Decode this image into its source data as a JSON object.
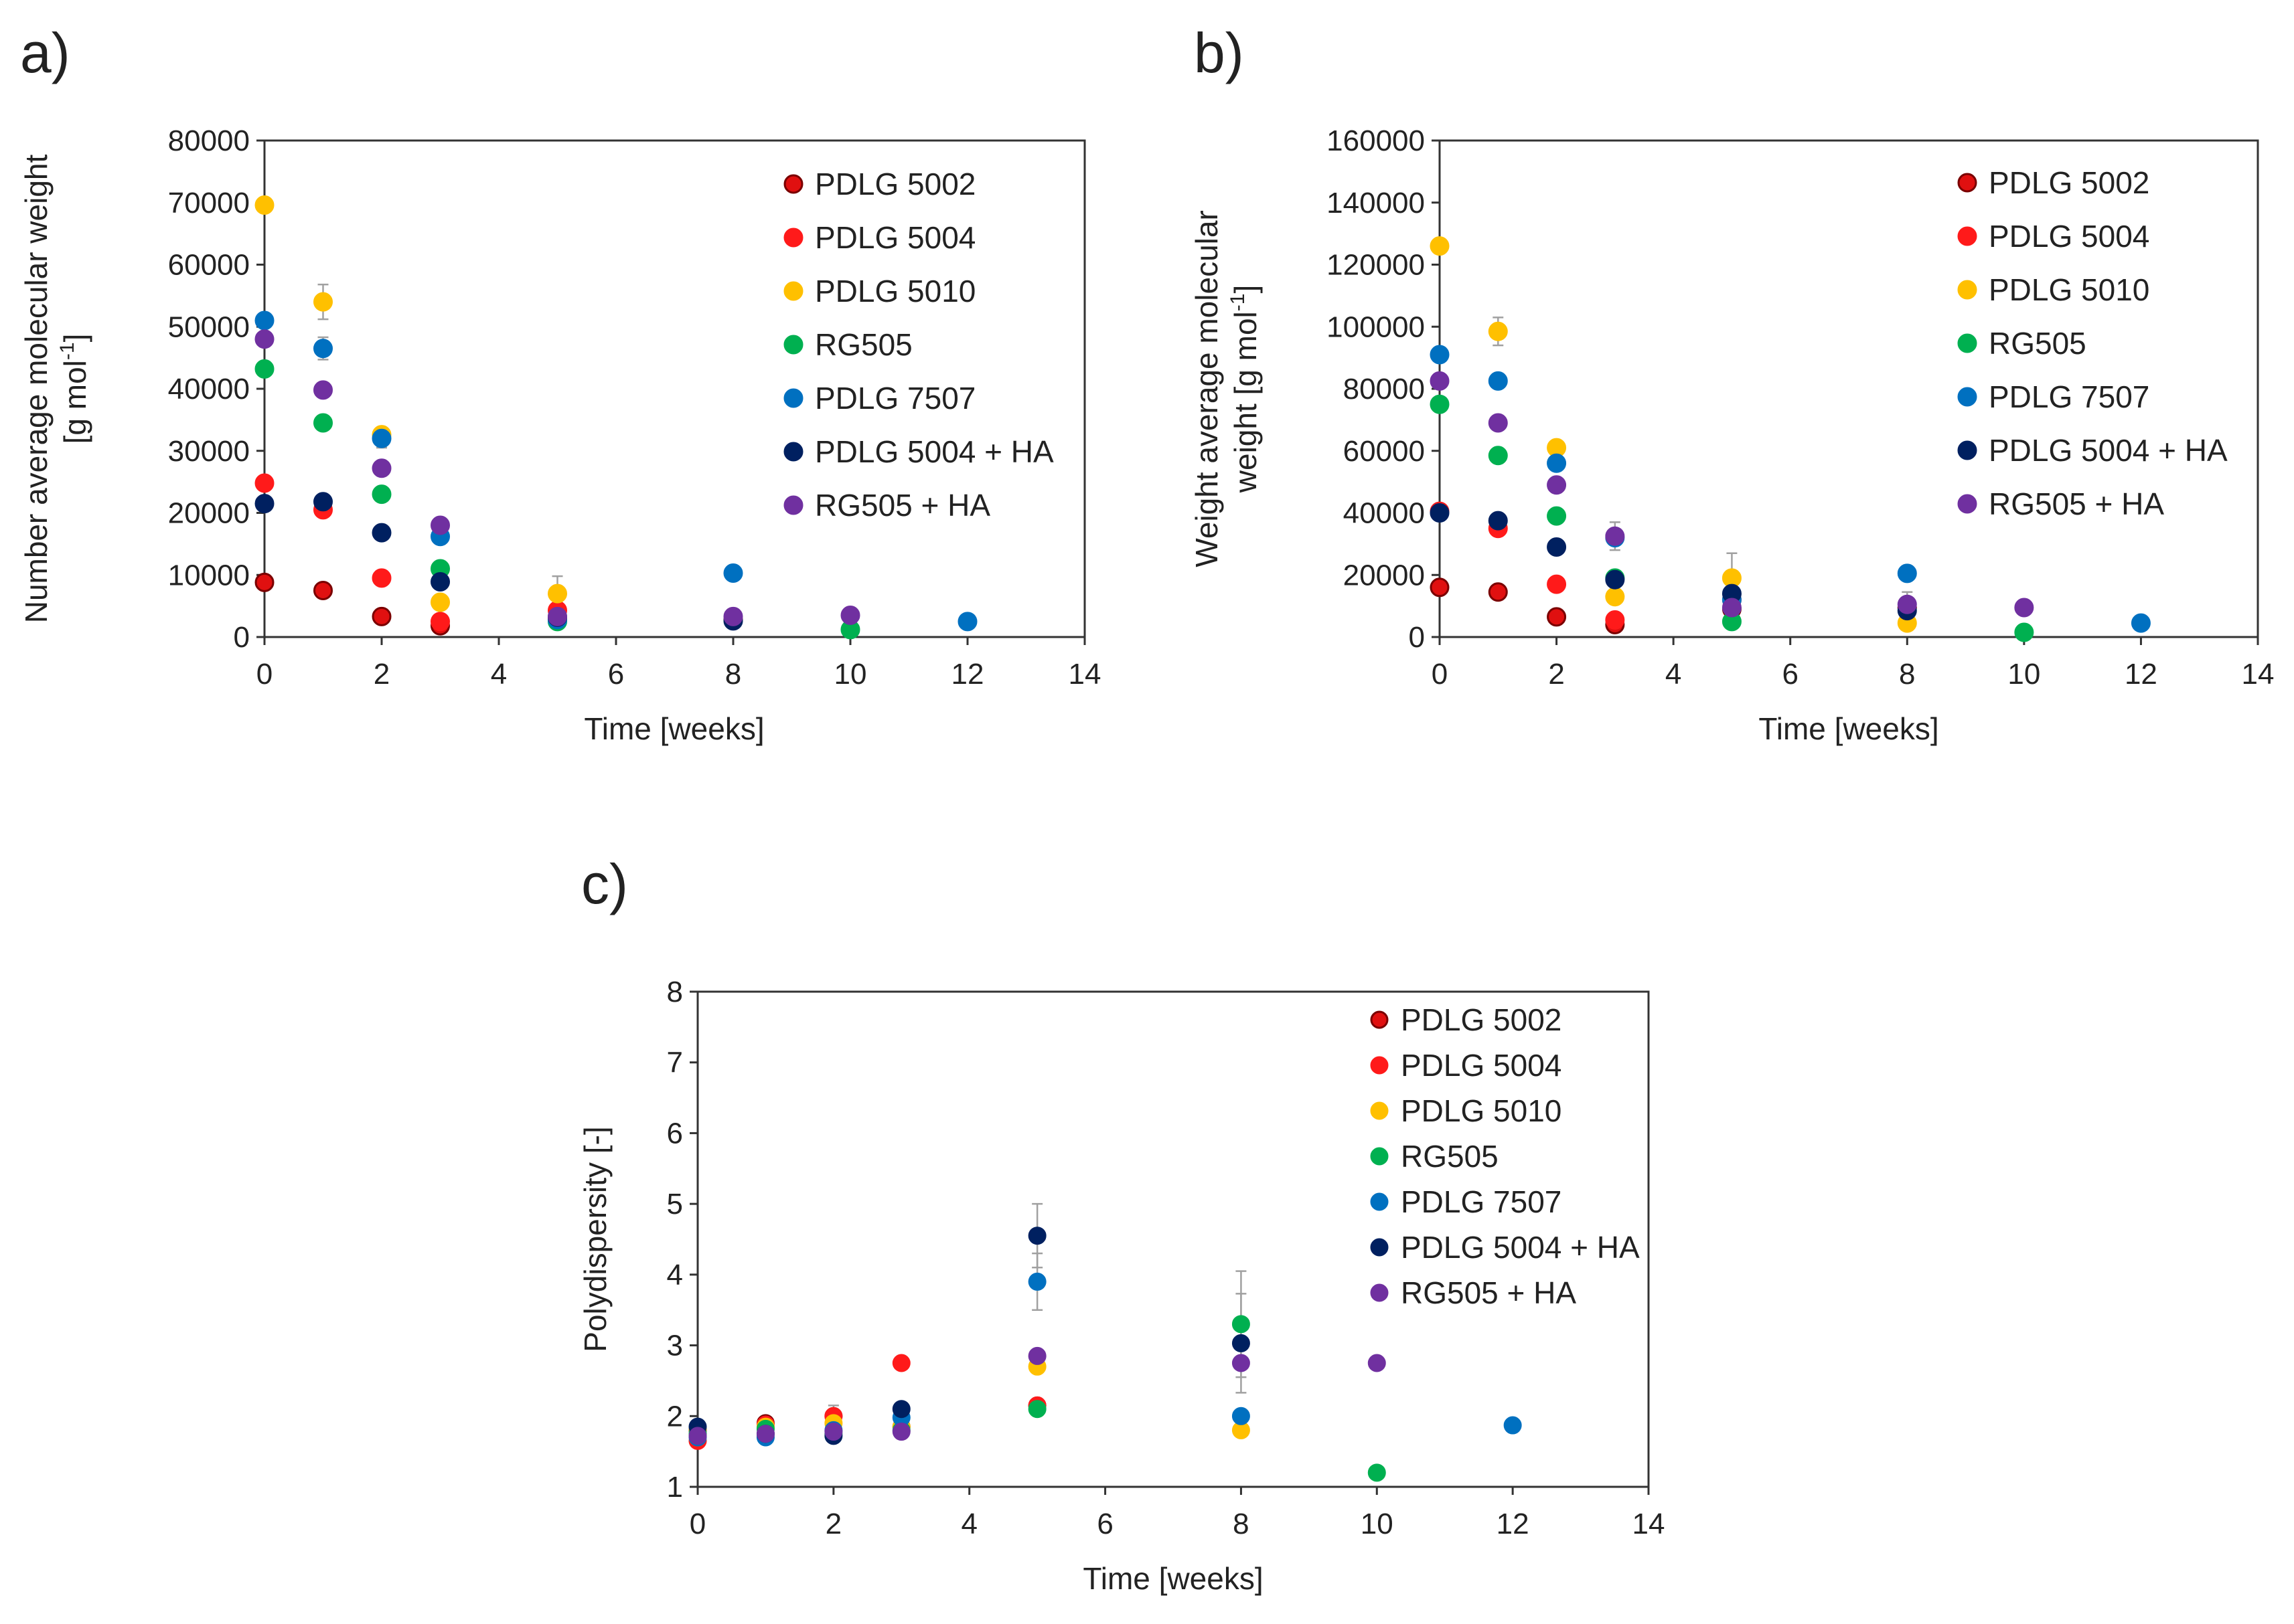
{
  "series_meta": [
    {
      "name": "PDLG 5002",
      "color": "#e01010",
      "edge": "#7a0000"
    },
    {
      "name": "PDLG 5004",
      "color": "#ff1a1a",
      "edge": "#ff1a1a"
    },
    {
      "name": "PDLG 5010",
      "color": "#ffc000",
      "edge": "#ffc000"
    },
    {
      "name": "RG505",
      "color": "#00b050",
      "edge": "#00b050"
    },
    {
      "name": "PDLG 7507",
      "color": "#0070c0",
      "edge": "#0070c0"
    },
    {
      "name": "PDLG 5004 + HA",
      "color": "#002060",
      "edge": "#002060"
    },
    {
      "name": "RG505 + HA",
      "color": "#7030a0",
      "edge": "#7030a0"
    }
  ],
  "chart_data": [
    {
      "panel": "a)",
      "type": "scatter",
      "xlabel": "Time [weeks]",
      "ylabel_lines": [
        "Number average molecular weight",
        "[g mol"
      ],
      "ylabel_sup": "-1",
      "ylabel_after": "]",
      "xlim": [
        0,
        14
      ],
      "ylim": [
        0,
        80000
      ],
      "xticks": [
        0,
        2,
        4,
        6,
        8,
        10,
        12,
        14
      ],
      "yticks": [
        0,
        10000,
        20000,
        30000,
        40000,
        50000,
        60000,
        70000,
        80000
      ],
      "series": [
        {
          "name": "PDLG 5002",
          "x": [
            0,
            1,
            2,
            3,
            5,
            8
          ],
          "y": [
            8800,
            7500,
            3300,
            1800,
            3000,
            2800
          ]
        },
        {
          "name": "PDLG 5004",
          "x": [
            0,
            1,
            2,
            3,
            5
          ],
          "y": [
            24800,
            20500,
            9500,
            2500,
            4300
          ]
        },
        {
          "name": "PDLG 5010",
          "x": [
            0,
            1,
            2,
            3,
            5
          ],
          "y": [
            69600,
            54000,
            32600,
            5600,
            7000
          ],
          "err": [
            0,
            2800,
            0,
            0,
            2800
          ]
        },
        {
          "name": "RG505",
          "x": [
            0,
            1,
            2,
            3,
            5,
            10
          ],
          "y": [
            43200,
            34500,
            23000,
            11000,
            2500,
            1200
          ]
        },
        {
          "name": "PDLG 7507",
          "x": [
            0,
            1,
            2,
            3,
            5,
            8,
            12
          ],
          "y": [
            51000,
            46500,
            32000,
            16200,
            2800,
            10300,
            2500
          ],
          "err": [
            0,
            1800,
            1500,
            0,
            0,
            0,
            0
          ]
        },
        {
          "name": "PDLG 5004 + HA",
          "x": [
            0,
            1,
            2,
            3,
            5,
            8
          ],
          "y": [
            21500,
            21800,
            16800,
            8900,
            3200,
            2600
          ]
        },
        {
          "name": "RG505 + HA",
          "x": [
            0,
            1,
            2,
            3,
            5,
            8,
            10
          ],
          "y": [
            48000,
            39800,
            27200,
            18000,
            3300,
            3300,
            3500
          ]
        }
      ]
    },
    {
      "panel": "b)",
      "type": "scatter",
      "xlabel": "Time [weeks]",
      "ylabel_lines": [
        "Weight average molecular",
        "weight [g mol"
      ],
      "ylabel_sup": "-1",
      "ylabel_after": "]",
      "xlim": [
        0,
        14
      ],
      "ylim": [
        0,
        160000
      ],
      "xticks": [
        0,
        2,
        4,
        6,
        8,
        10,
        12,
        14
      ],
      "yticks": [
        0,
        20000,
        40000,
        60000,
        80000,
        100000,
        120000,
        140000,
        160000
      ],
      "series": [
        {
          "name": "PDLG 5002",
          "x": [
            0,
            1,
            2,
            3,
            5,
            8
          ],
          "y": [
            16000,
            14500,
            6500,
            4000,
            9000,
            9500
          ]
        },
        {
          "name": "PDLG 5004",
          "x": [
            0,
            1,
            2,
            3,
            5
          ],
          "y": [
            40500,
            35000,
            17000,
            5500,
            12000
          ]
        },
        {
          "name": "PDLG 5010",
          "x": [
            0,
            1,
            2,
            3,
            5,
            8
          ],
          "y": [
            126000,
            98500,
            61000,
            13000,
            19000,
            4500
          ],
          "err": [
            0,
            4500,
            0,
            0,
            8000,
            0
          ]
        },
        {
          "name": "RG505",
          "x": [
            0,
            1,
            2,
            3,
            5,
            10
          ],
          "y": [
            75000,
            58500,
            39000,
            19000,
            5000,
            1500
          ]
        },
        {
          "name": "PDLG 7507",
          "x": [
            0,
            1,
            2,
            3,
            5,
            8,
            12
          ],
          "y": [
            91000,
            82500,
            56000,
            32000,
            12000,
            20500,
            4500
          ]
        },
        {
          "name": "PDLG 5004 + HA",
          "x": [
            0,
            1,
            2,
            3,
            5,
            8
          ],
          "y": [
            40000,
            37500,
            29000,
            18500,
            14000,
            8500
          ]
        },
        {
          "name": "RG505 + HA",
          "x": [
            0,
            1,
            2,
            3,
            5,
            8,
            10
          ],
          "y": [
            82500,
            69000,
            49000,
            32500,
            9500,
            10500,
            9500
          ],
          "err": [
            0,
            0,
            0,
            4500,
            0,
            4000,
            0
          ]
        }
      ]
    },
    {
      "panel": "c)",
      "type": "scatter",
      "xlabel": "Time [weeks]",
      "ylabel_lines": [
        "Polydispersity [-]"
      ],
      "xlim": [
        0,
        14
      ],
      "ylim": [
        1,
        8
      ],
      "xticks": [
        0,
        2,
        4,
        6,
        8,
        10,
        12,
        14
      ],
      "yticks": [
        1,
        2,
        3,
        4,
        5,
        6,
        7,
        8
      ],
      "series": [
        {
          "name": "PDLG 5002",
          "x": [
            0,
            1,
            2,
            3,
            5
          ],
          "y": [
            1.8,
            1.9,
            2.0,
            1.85,
            2.15
          ]
        },
        {
          "name": "PDLG 5004",
          "x": [
            0,
            1,
            2,
            3,
            5
          ],
          "y": [
            1.65,
            1.88,
            2.0,
            2.75,
            2.15
          ],
          "err": [
            0,
            0,
            0.15,
            0,
            0
          ]
        },
        {
          "name": "PDLG 5010",
          "x": [
            0,
            1,
            2,
            3,
            5,
            8
          ],
          "y": [
            1.82,
            1.85,
            1.9,
            1.85,
            2.7,
            1.8
          ]
        },
        {
          "name": "RG505",
          "x": [
            0,
            1,
            2,
            3,
            5,
            8,
            10
          ],
          "y": [
            1.75,
            1.82,
            1.75,
            1.8,
            2.1,
            3.3,
            1.2
          ],
          "err": [
            0,
            0,
            0,
            0,
            0,
            0.75,
            0
          ]
        },
        {
          "name": "PDLG 7507",
          "x": [
            0,
            1,
            2,
            3,
            5,
            8,
            12
          ],
          "y": [
            1.7,
            1.7,
            1.8,
            1.98,
            3.9,
            2.0,
            1.87
          ],
          "err": [
            0,
            0,
            0,
            0,
            0.4,
            0,
            0
          ]
        },
        {
          "name": "PDLG 5004 + HA",
          "x": [
            0,
            1,
            2,
            3,
            5,
            8
          ],
          "y": [
            1.85,
            1.75,
            1.72,
            2.1,
            4.55,
            3.03
          ],
          "err": [
            0,
            0,
            0,
            0,
            0.45,
            0.7
          ]
        },
        {
          "name": "RG505 + HA",
          "x": [
            0,
            1,
            2,
            3,
            5,
            8,
            10
          ],
          "y": [
            1.72,
            1.75,
            1.78,
            1.78,
            2.85,
            2.75,
            2.75
          ]
        }
      ]
    }
  ]
}
